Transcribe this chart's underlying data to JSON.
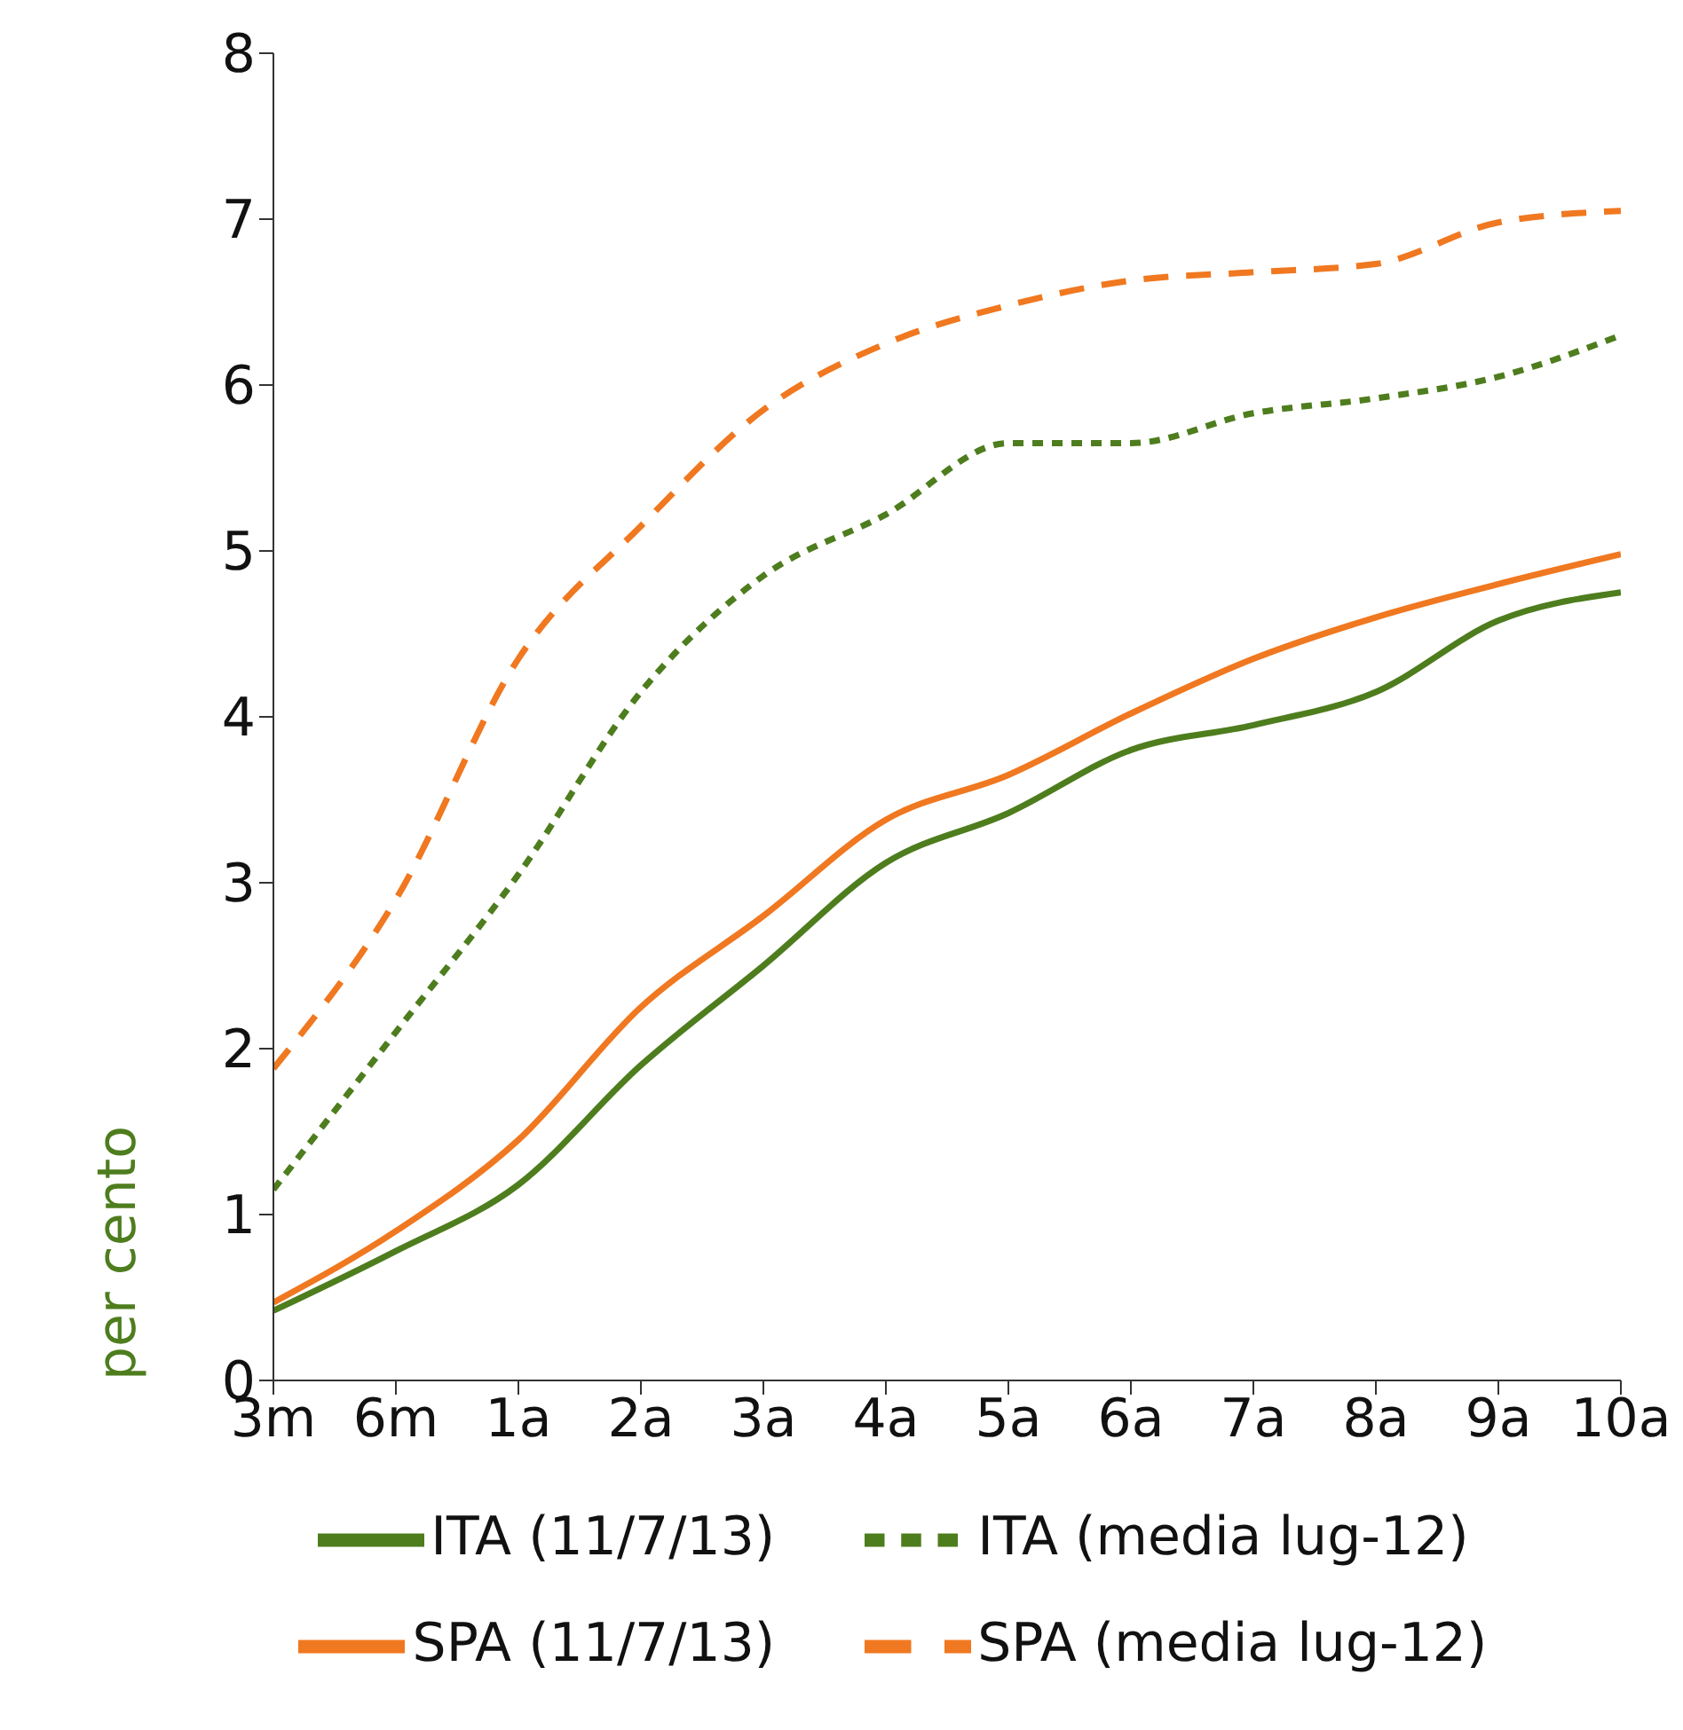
{
  "chart_data": {
    "type": "line",
    "ylabel": "per cento",
    "categories": [
      "3m",
      "6m",
      "1a",
      "2a",
      "3a",
      "4a",
      "5a",
      "6a",
      "7a",
      "8a",
      "9a",
      "10a"
    ],
    "series": [
      {
        "name": "ITA (11/7/13)",
        "color": "#4e7d1e",
        "line_style": "solid",
        "values": [
          0.42,
          0.78,
          1.18,
          1.9,
          2.5,
          3.12,
          3.42,
          3.8,
          3.95,
          4.15,
          4.58,
          4.75
        ]
      },
      {
        "name": "SPA (11/7/13)",
        "color": "#f07820",
        "line_style": "solid",
        "values": [
          0.47,
          0.9,
          1.45,
          2.25,
          2.8,
          3.38,
          3.65,
          4.02,
          4.35,
          4.6,
          4.8,
          4.98
        ]
      },
      {
        "name": "ITA (media lug-12)",
        "color": "#4e7d1e",
        "line_style": "dotted",
        "values": [
          1.15,
          2.1,
          3.05,
          4.15,
          4.85,
          5.22,
          5.65,
          5.65,
          5.83,
          5.92,
          6.05,
          6.3
        ]
      },
      {
        "name": "SPA (media lug-12)",
        "color": "#f07820",
        "line_style": "dashed",
        "values": [
          1.88,
          2.9,
          4.35,
          5.15,
          5.85,
          6.25,
          6.48,
          6.63,
          6.68,
          6.73,
          6.98,
          7.05
        ]
      }
    ],
    "ylim": [
      0,
      8
    ],
    "yticks": [
      0,
      1,
      2,
      3,
      4,
      5,
      6,
      7,
      8
    ],
    "grid": false,
    "legend": "bottom",
    "marker": "none"
  }
}
